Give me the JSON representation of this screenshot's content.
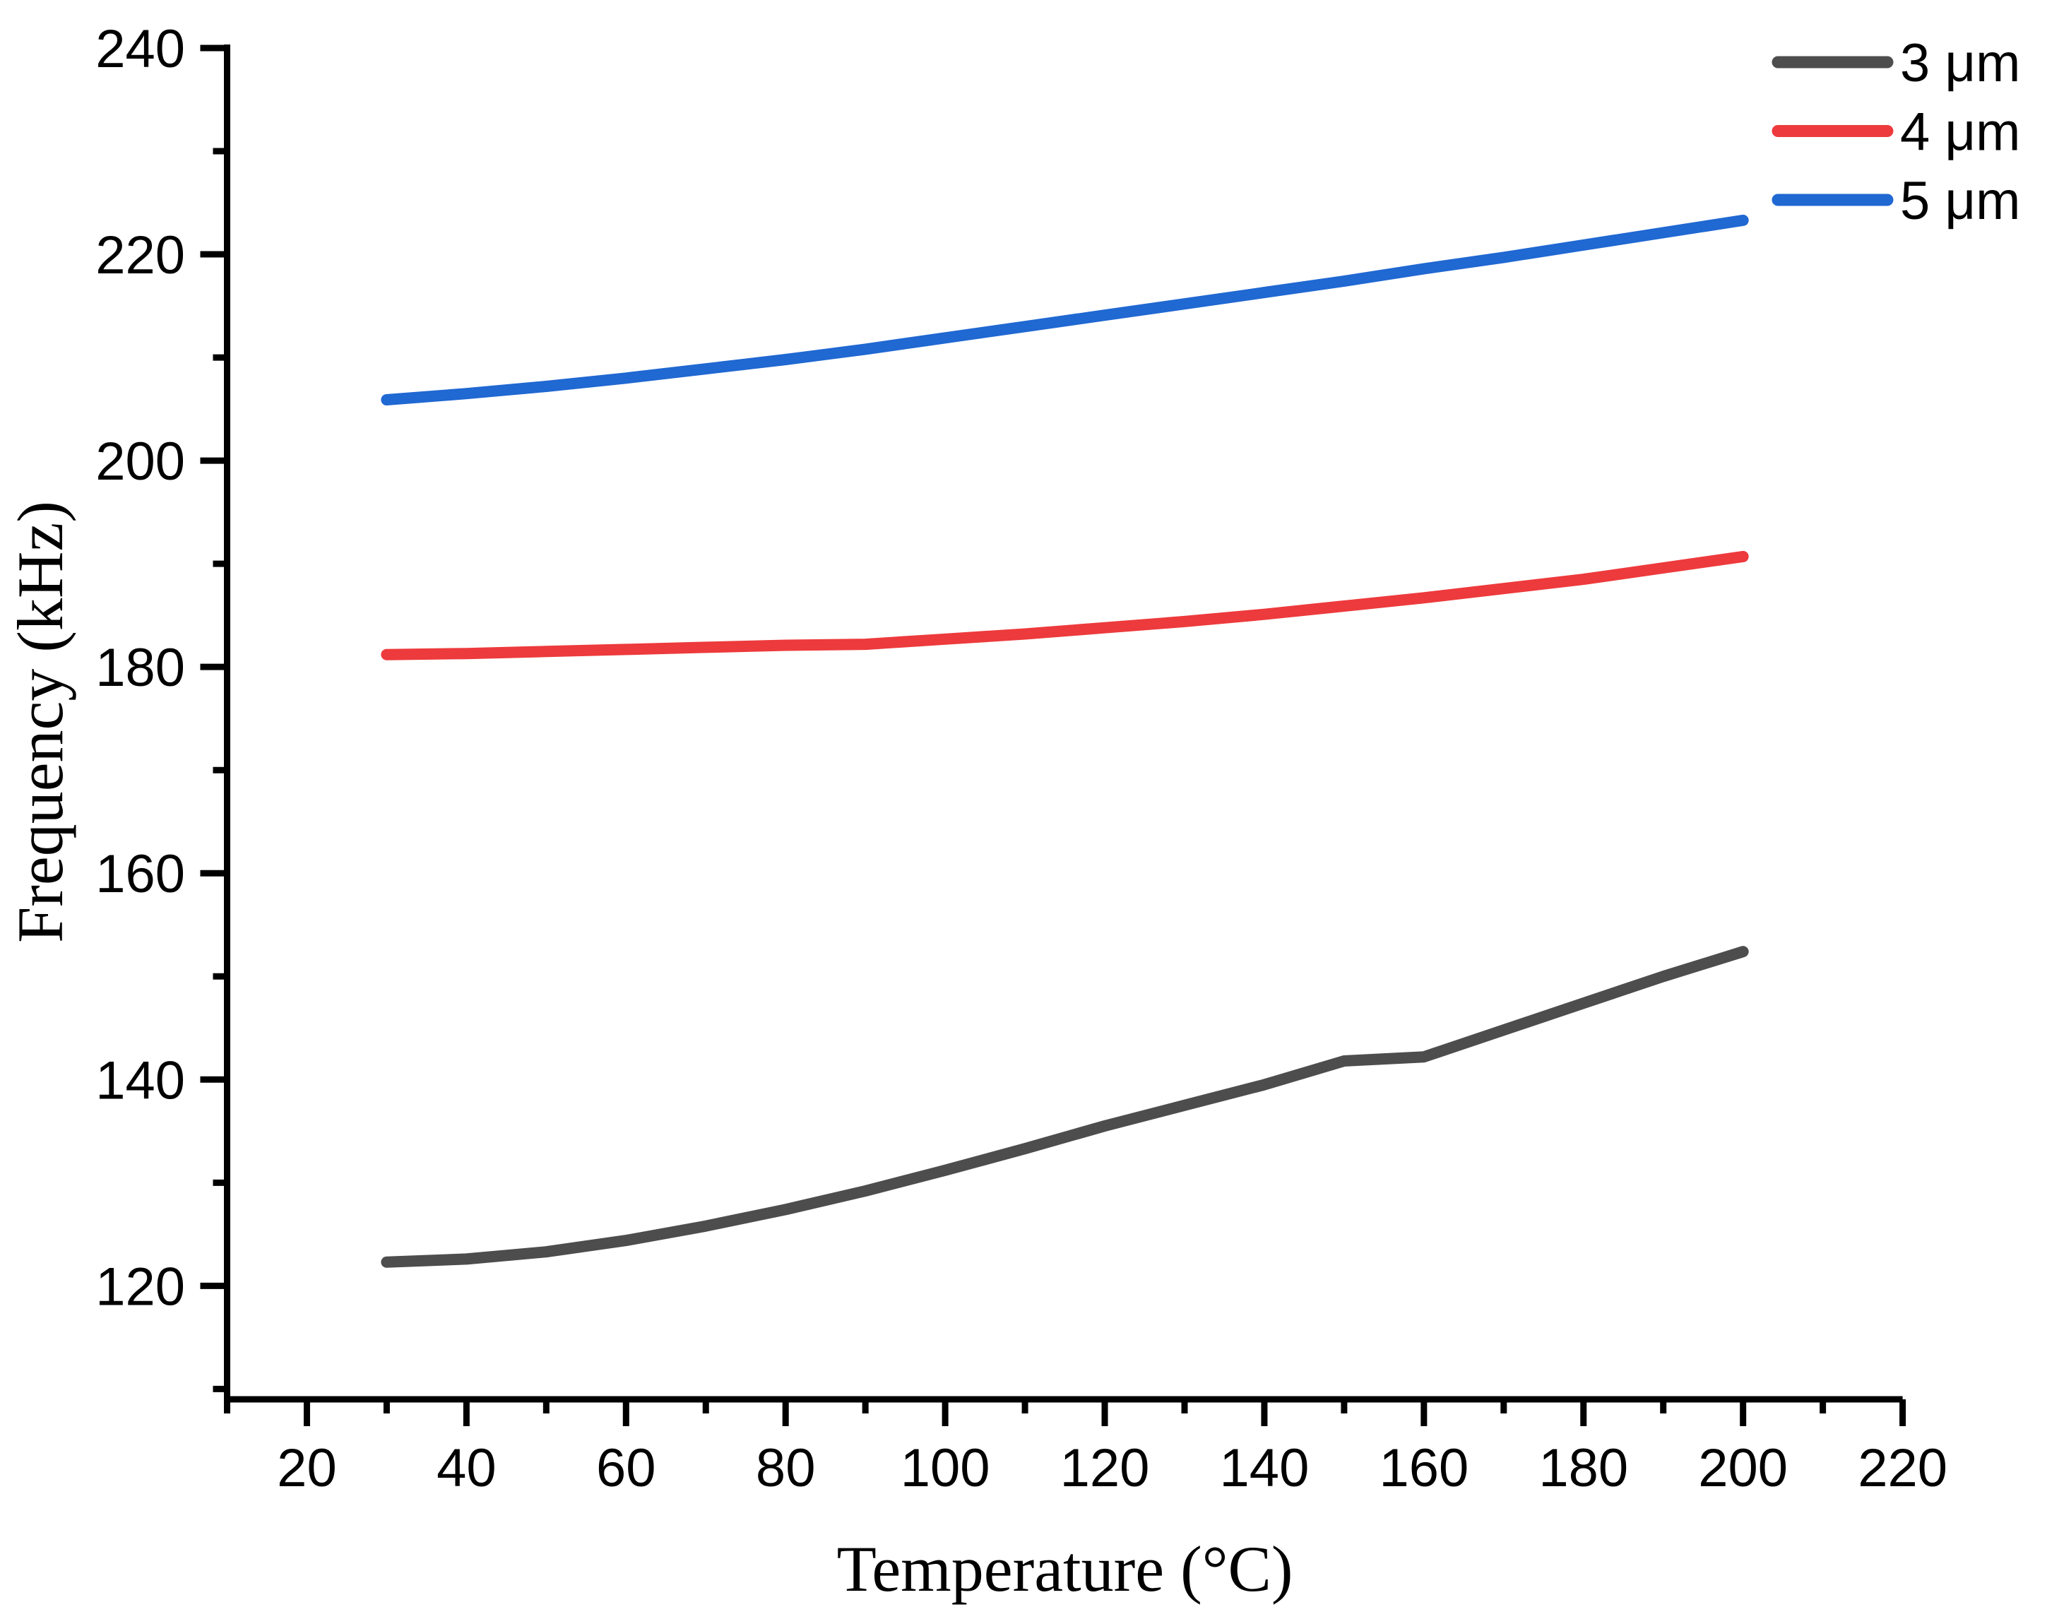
{
  "chart_data": {
    "type": "line",
    "title": "",
    "xlabel": "Temperature (°C)",
    "ylabel": "Frequency (kHz)",
    "xlim": [
      10,
      220
    ],
    "ylim": [
      109,
      240
    ],
    "xticks": [
      20,
      40,
      60,
      80,
      100,
      120,
      140,
      160,
      180,
      200,
      220
    ],
    "yticks": [
      120,
      140,
      160,
      180,
      200,
      220,
      240
    ],
    "x_minor_ticks": [
      10,
      30,
      50,
      70,
      90,
      110,
      130,
      150,
      170,
      190,
      210
    ],
    "y_minor_ticks": [
      110,
      130,
      150,
      170,
      190,
      210,
      230
    ],
    "grid": false,
    "legend_position": "top-right",
    "background": "#ffffff",
    "axis_color": "#000000",
    "x": [
      30,
      40,
      50,
      60,
      70,
      80,
      90,
      100,
      110,
      120,
      130,
      140,
      150,
      160,
      170,
      180,
      190,
      200
    ],
    "series": [
      {
        "name": "3 μm",
        "color": "#4d4d4d",
        "values": [
          122.3,
          122.6,
          123.3,
          124.4,
          125.8,
          127.4,
          129.2,
          131.2,
          133.3,
          135.5,
          137.5,
          139.5,
          141.8,
          142.2,
          144.8,
          147.4,
          150.0,
          152.4
        ]
      },
      {
        "name": "4 μm",
        "color": "#ed3a3c",
        "values": [
          181.2,
          181.3,
          181.5,
          181.7,
          181.9,
          182.1,
          182.2,
          182.7,
          183.2,
          183.8,
          184.4,
          185.1,
          185.9,
          186.7,
          187.6,
          188.5,
          189.6,
          190.7
        ]
      },
      {
        "name": "5 μm",
        "color": "#2068d2",
        "values": [
          205.9,
          206.5,
          207.2,
          208.0,
          208.9,
          209.8,
          210.8,
          211.9,
          213.0,
          214.1,
          215.2,
          216.3,
          217.4,
          218.6,
          219.7,
          220.9,
          222.1,
          223.3
        ]
      }
    ]
  }
}
